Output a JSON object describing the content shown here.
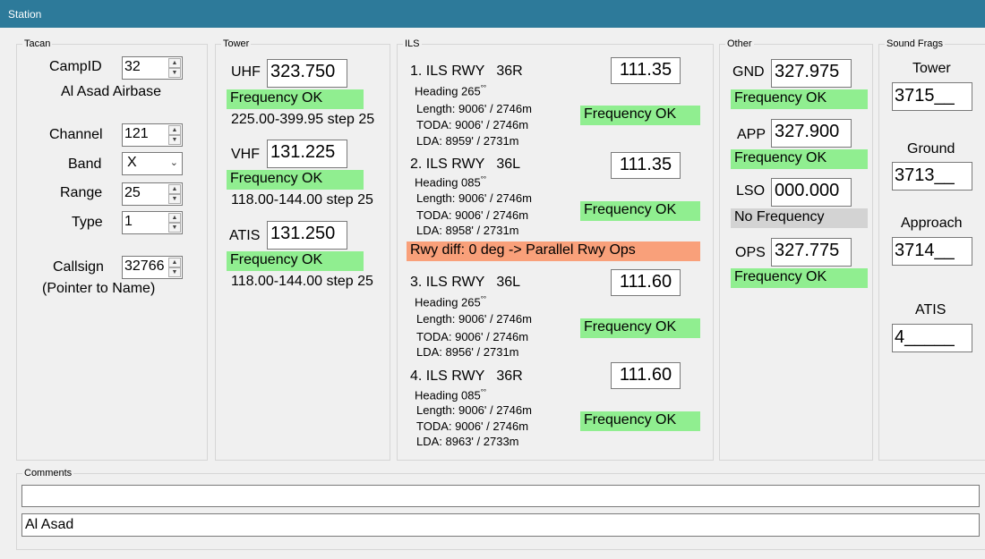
{
  "window": {
    "title": "Station"
  },
  "tacan": {
    "group_label": "Tacan",
    "campid_label": "CampID",
    "campid": "32",
    "airbase": "Al Asad Airbase",
    "channel_label": "Channel",
    "channel": "121",
    "band_label": "Band",
    "band": "X",
    "range_label": "Range",
    "range": "25",
    "type_label": "Type",
    "type": "1",
    "callsign_label": "Callsign",
    "callsign": "32766",
    "callsign_note": "(Pointer to Name)"
  },
  "tower": {
    "group_label": "Tower",
    "uhf_label": "UHF",
    "uhf": "323.750",
    "uhf_status": "Frequency OK",
    "uhf_range": "225.00-399.95 step 25",
    "vhf_label": "VHF",
    "vhf": "131.225",
    "vhf_status": "Frequency OK",
    "vhf_range": "118.00-144.00 step 25",
    "atis_label": "ATIS",
    "atis": "131.250",
    "atis_status": "Frequency OK",
    "atis_range": "118.00-144.00 step 25"
  },
  "ils": {
    "group_label": "ILS",
    "items": [
      {
        "title": "1. ILS RWY   36R",
        "heading": "Heading 265",
        "length": "Length: 9006' / 2746m",
        "toda": "TODA: 9006' / 2746m",
        "lda": "LDA: 8959' / 2731m",
        "freq": "111.35",
        "status": "Frequency OK"
      },
      {
        "title": "2. ILS RWY   36L",
        "heading": "Heading 085",
        "length": "Length: 9006' / 2746m",
        "toda": "TODA: 9006' / 2746m",
        "lda": "LDA: 8958' / 2731m",
        "freq": "111.35",
        "status": "Frequency OK"
      },
      {
        "title": "3. ILS RWY   36L",
        "heading": "Heading 265",
        "length": "Length: 9006' / 2746m",
        "toda": "TODA: 9006' / 2746m",
        "lda": "LDA: 8956' / 2731m",
        "freq": "111.60",
        "status": "Frequency OK"
      },
      {
        "title": "4. ILS RWY   36R",
        "heading": "Heading 085",
        "length": "Length: 9006' / 2746m",
        "toda": "TODA: 9006' / 2746m",
        "lda": "LDA: 8963' / 2733m",
        "freq": "111.60",
        "status": "Frequency OK"
      }
    ],
    "rwy_diff": "Rwy diff: 0 deg -> Parallel Rwy Ops"
  },
  "other": {
    "group_label": "Other",
    "gnd_label": "GND",
    "gnd": "327.975",
    "gnd_status": "Frequency OK",
    "app_label": "APP",
    "app": "327.900",
    "app_status": "Frequency OK",
    "lso_label": "LSO",
    "lso": "000.000",
    "lso_status": "No Frequency",
    "ops_label": "OPS",
    "ops": "327.775",
    "ops_status": "Frequency OK"
  },
  "sound_frags": {
    "group_label": "Sound Frags",
    "tower_label": "Tower",
    "tower": "3715__",
    "ground_label": "Ground",
    "ground": "3713__",
    "approach_label": "Approach",
    "approach": "3714__",
    "atis_label": "ATIS",
    "atis": "4_____"
  },
  "comments": {
    "group_label": "Comments",
    "line1": "",
    "line2": "Al Asad"
  },
  "colors": {
    "titlebar": "#2d7a9a",
    "ok": "#90ee90",
    "warn": "#f9a07a",
    "none": "#d3d3d3"
  }
}
